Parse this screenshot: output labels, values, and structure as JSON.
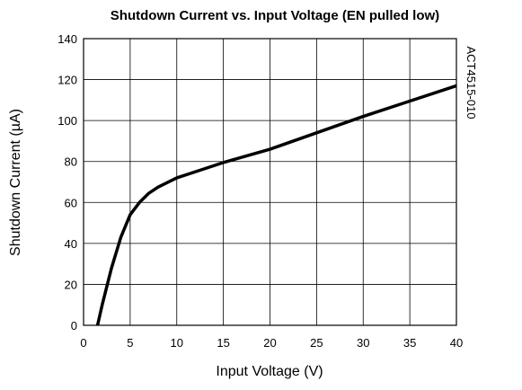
{
  "chart_data": {
    "type": "line",
    "title": "Shutdown Current vs. Input Voltage (EN pulled low)",
    "xlabel": "Input Voltage (V)",
    "ylabel": "Shutdown Current (µA)",
    "annotation": "ACT4515-010",
    "x": [
      1.5,
      2,
      2.5,
      3,
      4,
      5,
      6,
      7,
      8,
      10,
      12,
      15,
      20,
      25,
      30,
      35,
      40
    ],
    "series": [
      {
        "name": "Shutdown Current",
        "color": "#000000",
        "values": [
          0,
          10,
          19,
          28,
          43,
          54,
          60,
          64.5,
          67.5,
          72,
          75,
          79.5,
          86,
          94,
          102,
          109.5,
          117
        ]
      }
    ],
    "xlim": [
      0,
      40
    ],
    "xticks": [
      0,
      5,
      10,
      15,
      20,
      25,
      30,
      35,
      40
    ],
    "ylim": [
      0,
      140
    ],
    "yticks": [
      0,
      20,
      40,
      60,
      80,
      100,
      120,
      140
    ],
    "grid": true
  }
}
